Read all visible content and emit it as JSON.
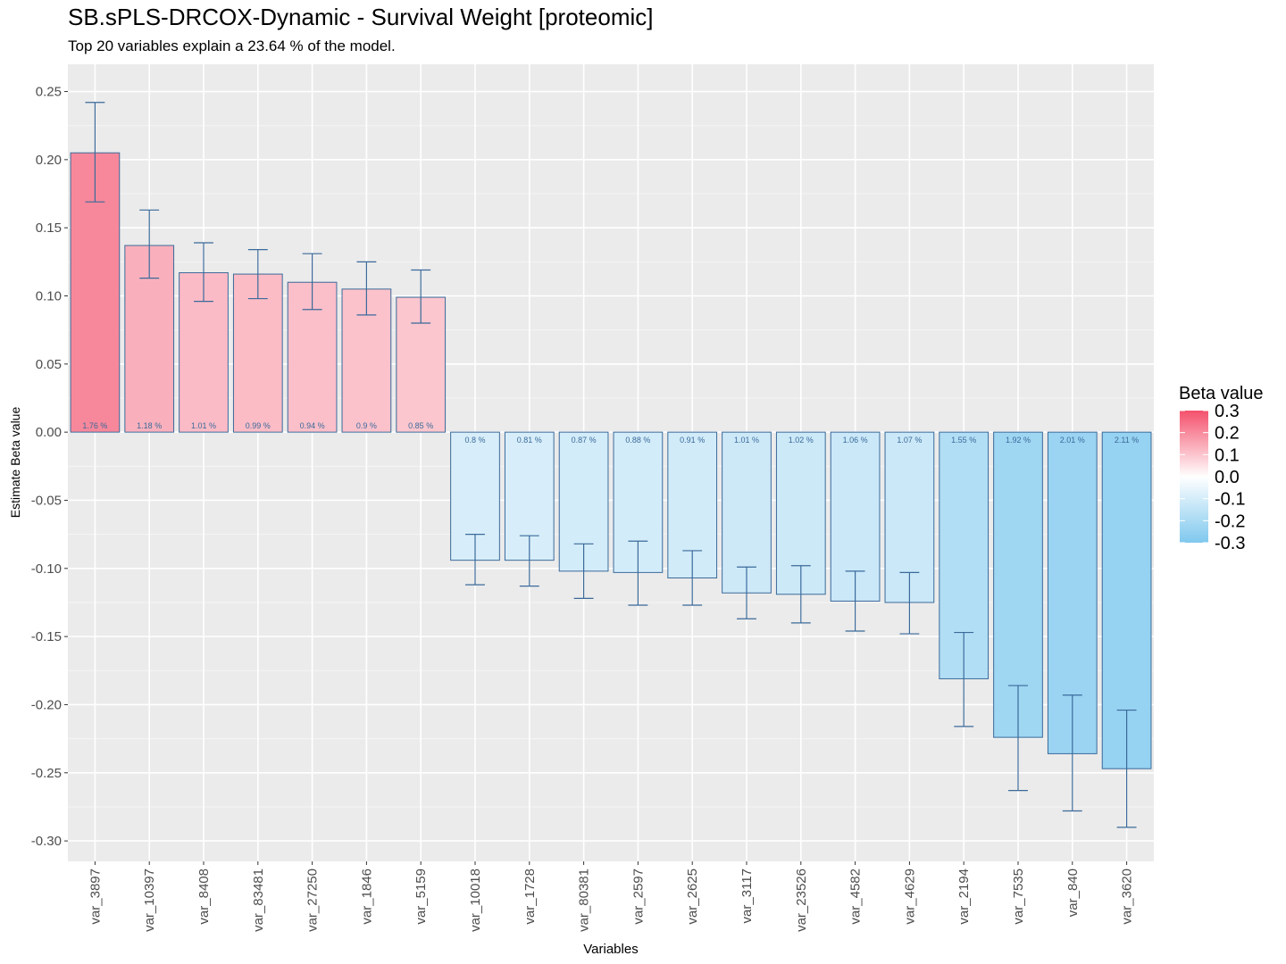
{
  "chart_data": {
    "type": "bar",
    "title": "SB.sPLS-DRCOX-Dynamic - Survival Weight [proteomic]",
    "subtitle": "Top 20 variables explain a 23.64 % of the model.",
    "xlabel": "Variables",
    "ylabel": "Estimate Beta value",
    "ylim": [
      -0.315,
      0.27
    ],
    "yticks": [
      "0.25",
      "0.20",
      "0.15",
      "0.10",
      "0.05",
      "0.00",
      "-0.05",
      "-0.10",
      "-0.15",
      "-0.20",
      "-0.25",
      "-0.30"
    ],
    "grid": true,
    "categories": [
      "var_3897",
      "var_10397",
      "var_8408",
      "var_83481",
      "var_27250",
      "var_1846",
      "var_5159",
      "var_10018",
      "var_1728",
      "var_80381",
      "var_2597",
      "var_2625",
      "var_3117",
      "var_23526",
      "var_4582",
      "var_4629",
      "var_2194",
      "var_7535",
      "var_840",
      "var_3620"
    ],
    "values": [
      0.205,
      0.137,
      0.117,
      0.116,
      0.11,
      0.105,
      0.099,
      -0.094,
      -0.094,
      -0.102,
      -0.103,
      -0.107,
      -0.118,
      -0.119,
      -0.124,
      -0.125,
      -0.181,
      -0.224,
      -0.236,
      -0.247
    ],
    "error_upper": [
      0.242,
      0.163,
      0.139,
      0.134,
      0.131,
      0.125,
      0.119,
      -0.075,
      -0.076,
      -0.082,
      -0.08,
      -0.087,
      -0.099,
      -0.098,
      -0.102,
      -0.103,
      -0.147,
      -0.186,
      -0.193,
      -0.204
    ],
    "error_lower": [
      0.169,
      0.113,
      0.096,
      0.098,
      0.09,
      0.086,
      0.08,
      -0.112,
      -0.113,
      -0.122,
      -0.127,
      -0.127,
      -0.137,
      -0.14,
      -0.146,
      -0.148,
      -0.216,
      -0.263,
      -0.278,
      -0.29
    ],
    "bar_labels": [
      "1.76 %",
      "1.18 %",
      "1.01 %",
      "0.99 %",
      "0.94 %",
      "0.9 %",
      "0.85 %",
      "0.8 %",
      "0.81 %",
      "0.87 %",
      "0.88 %",
      "0.91 %",
      "1.01 %",
      "1.02 %",
      "1.06 %",
      "1.07 %",
      "1.55 %",
      "1.92 %",
      "2.01 %",
      "2.11 %"
    ],
    "legend": {
      "title": "Beta value",
      "position": "right",
      "labels": [
        "0.3",
        "0.2",
        "0.1",
        "0.0",
        "-0.1",
        "-0.2",
        "-0.3"
      ],
      "range": [
        -0.3,
        0.3
      ]
    },
    "colors": {
      "high": "#F4516C",
      "mid": "#FFFFFF",
      "low": "#7FC8EE",
      "outline": "#3B6A9A",
      "panel": "#EBEBEB",
      "grid": "#FFFFFF"
    }
  }
}
